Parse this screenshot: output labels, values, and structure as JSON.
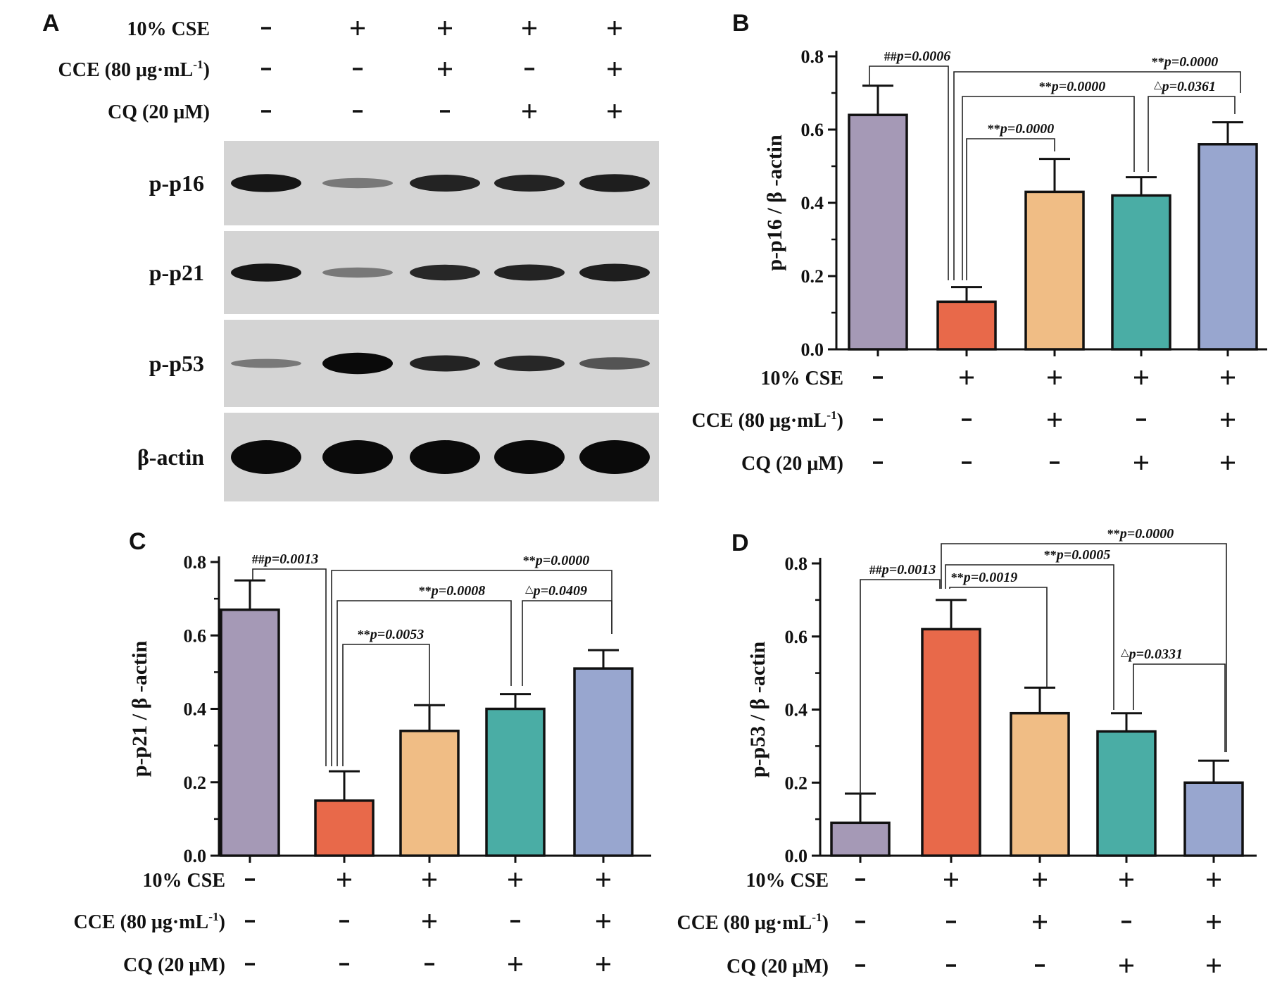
{
  "figure": {
    "panel_letters": [
      "A",
      "B",
      "C",
      "D"
    ],
    "treatments": [
      {
        "label": "10% CSE",
        "signs": [
          "-",
          "+",
          "+",
          "+",
          "+"
        ]
      },
      {
        "label": "CCE (80 μg·mL",
        "superscript": "-1",
        "suffix": ")",
        "signs": [
          "-",
          "-",
          "+",
          "-",
          "+"
        ]
      },
      {
        "label": "CQ (20 μM)",
        "signs": [
          "-",
          "-",
          "-",
          "+",
          "+"
        ]
      }
    ],
    "blot": {
      "rows": [
        {
          "label": "p-p16",
          "band_intensity": [
            0.95,
            0.55,
            0.9,
            0.9,
            0.92
          ],
          "band_height": [
            0.8,
            0.45,
            0.75,
            0.75,
            0.8
          ]
        },
        {
          "label": "p-p21",
          "band_intensity": [
            0.95,
            0.55,
            0.88,
            0.9,
            0.92
          ],
          "band_height": [
            0.8,
            0.45,
            0.7,
            0.72,
            0.78
          ]
        },
        {
          "label": "p-p53",
          "band_intensity": [
            0.55,
            1.0,
            0.9,
            0.88,
            0.7
          ],
          "band_height": [
            0.4,
            0.95,
            0.72,
            0.7,
            0.55
          ]
        },
        {
          "label": "β-actin",
          "band_intensity": [
            1.0,
            1.0,
            1.0,
            1.0,
            1.0
          ],
          "band_height": [
            1.0,
            1.0,
            1.0,
            1.0,
            1.0
          ]
        }
      ]
    }
  },
  "colors": {
    "bars": [
      "#a599b6",
      "#e8694a",
      "#f0bd85",
      "#4aada5",
      "#98a6cf"
    ],
    "axis": "#111111",
    "blot_bg": "#d4d4d4",
    "band": "#0c0c0c"
  },
  "chart_data": [
    {
      "panel": "B",
      "type": "bar",
      "categories": [
        "1",
        "2",
        "3",
        "4",
        "5"
      ],
      "values": [
        0.64,
        0.13,
        0.43,
        0.42,
        0.56
      ],
      "errors": [
        0.08,
        0.04,
        0.09,
        0.05,
        0.06
      ],
      "ylabel": "p-p16 / β -actin",
      "ylim": [
        0.0,
        0.8
      ],
      "yticks": [
        "0.0",
        "0.2",
        "0.4",
        "0.6",
        "0.8"
      ],
      "annotations": [
        {
          "from": 0,
          "to": 1,
          "marker": "##",
          "text": "p=0.0006"
        },
        {
          "from": 1,
          "to": 4,
          "marker": "**",
          "text": "p=0.0000"
        },
        {
          "from": 1,
          "to": 3,
          "marker": "**",
          "text": "p=0.0000"
        },
        {
          "from": 3,
          "to": 4,
          "marker": "△",
          "text": "p=0.0361"
        },
        {
          "from": 1,
          "to": 2,
          "marker": "**",
          "text": "p=0.0000"
        }
      ]
    },
    {
      "panel": "C",
      "type": "bar",
      "categories": [
        "1",
        "2",
        "3",
        "4",
        "5"
      ],
      "values": [
        0.67,
        0.15,
        0.34,
        0.4,
        0.51
      ],
      "errors": [
        0.08,
        0.08,
        0.07,
        0.04,
        0.05
      ],
      "ylabel": "p-p21 / β -actin",
      "ylim": [
        0.0,
        0.8
      ],
      "yticks": [
        "0.0",
        "0.2",
        "0.4",
        "0.6",
        "0.8"
      ],
      "annotations": [
        {
          "from": 0,
          "to": 1,
          "marker": "##",
          "text": "p=0.0013"
        },
        {
          "from": 1,
          "to": 4,
          "marker": "**",
          "text": "p=0.0000"
        },
        {
          "from": 1,
          "to": 3,
          "marker": "**",
          "text": "p=0.0008"
        },
        {
          "from": 3,
          "to": 4,
          "marker": "△",
          "text": "p=0.0409"
        },
        {
          "from": 1,
          "to": 2,
          "marker": "**",
          "text": "p=0.0053"
        }
      ]
    },
    {
      "panel": "D",
      "type": "bar",
      "categories": [
        "1",
        "2",
        "3",
        "4",
        "5"
      ],
      "values": [
        0.09,
        0.62,
        0.39,
        0.34,
        0.2
      ],
      "errors": [
        0.08,
        0.08,
        0.07,
        0.05,
        0.06
      ],
      "ylabel": "p-p53 / β -actin",
      "ylim": [
        0.0,
        0.8
      ],
      "yticks": [
        "0.0",
        "0.2",
        "0.4",
        "0.6",
        "0.8"
      ],
      "annotations": [
        {
          "from": 0,
          "to": 1,
          "marker": "##",
          "text": "p=0.0013"
        },
        {
          "from": 1,
          "to": 4,
          "marker": "**",
          "text": "p=0.0000"
        },
        {
          "from": 1,
          "to": 3,
          "marker": "**",
          "text": "p=0.0005"
        },
        {
          "from": 1,
          "to": 2,
          "marker": "**",
          "text": "p=0.0019"
        },
        {
          "from": 3,
          "to": 4,
          "marker": "△",
          "text": "p=0.0331"
        }
      ]
    }
  ]
}
